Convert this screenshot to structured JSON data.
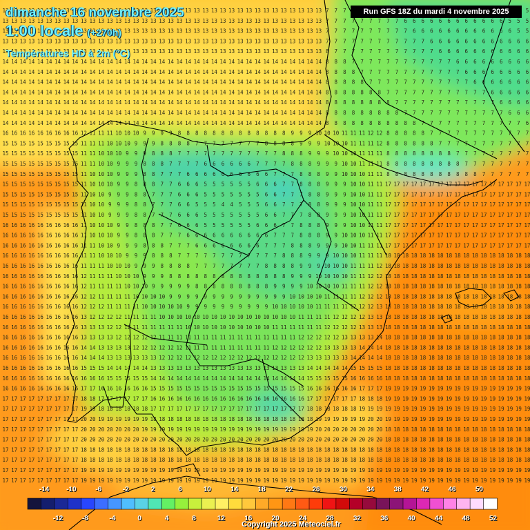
{
  "header": {
    "date_line": "dimanche 16 novembre 2025",
    "time_line": "1:00 locale",
    "lead_time": "(+270h)",
    "parameter": "Températures HD à 2m (°C)",
    "run_info": "Run GFS 18Z du mardi 4 novembre 2025"
  },
  "credit": "Copyright 2025 Meteociel.fr",
  "legend": {
    "top_labels": [
      "-14",
      "-10",
      "-6",
      "-2",
      "2",
      "6",
      "10",
      "14",
      "18",
      "22",
      "26",
      "30",
      "34",
      "38",
      "42",
      "46",
      "50"
    ],
    "bottom_labels": [
      "-12",
      "-8",
      "-4",
      "0",
      "4",
      "8",
      "12",
      "16",
      "20",
      "24",
      "28",
      "32",
      "36",
      "40",
      "44",
      "48",
      "52"
    ],
    "colors": [
      "#14143c",
      "#141e6e",
      "#1a2896",
      "#1e32c8",
      "#2846ff",
      "#3c6eff",
      "#4696ff",
      "#50beff",
      "#5ad2e6",
      "#50e6b4",
      "#64f064",
      "#96f03c",
      "#c8f03c",
      "#ebf050",
      "#fff064",
      "#ffdc3c",
      "#ffc83c",
      "#ffaa28",
      "#ff9614",
      "#ff7814",
      "#ff5a14",
      "#ff3c0a",
      "#f01414",
      "#d20a0a",
      "#b40028",
      "#960a3c",
      "#78145a",
      "#8c1478",
      "#b41496",
      "#dc28b4",
      "#f050d2",
      "#ff82e6",
      "#ffb4f0",
      "#ffdcff",
      "#ffffff"
    ]
  },
  "map": {
    "region": "Péninsule Ibérique",
    "field": "température à 2 m",
    "unit": "°C",
    "value_range": [
      1,
      20
    ]
  }
}
